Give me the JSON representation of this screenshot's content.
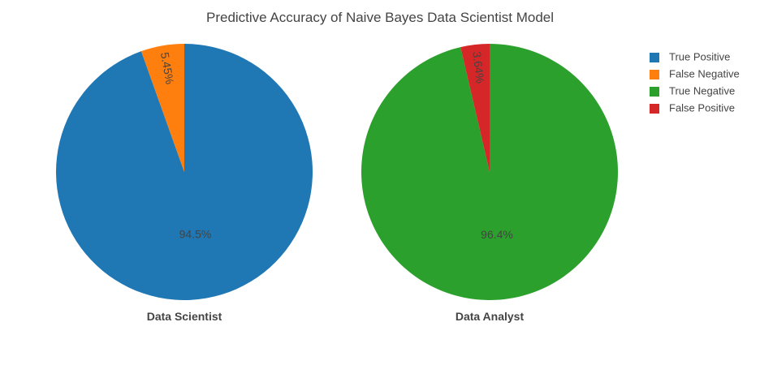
{
  "chart_data": {
    "type": "pie",
    "title": "Predictive Accuracy of Naive Bayes Data Scientist Model",
    "legend": {
      "placement": "top-right",
      "items": [
        {
          "label": "True Positive",
          "color": "#1f77b4"
        },
        {
          "label": "False Negative",
          "color": "#ff7f0e"
        },
        {
          "label": "True Negative",
          "color": "#2ca02c"
        },
        {
          "label": "False Positive",
          "color": "#d62728"
        }
      ]
    },
    "pies": [
      {
        "name": "Data Scientist",
        "slices": [
          {
            "label": "True Positive",
            "value": 94.5,
            "text": "94.5%",
            "color": "#1f77b4"
          },
          {
            "label": "False Negative",
            "value": 5.45,
            "text": "5.45%",
            "color": "#ff7f0e"
          }
        ]
      },
      {
        "name": "Data Analyst",
        "slices": [
          {
            "label": "True Negative",
            "value": 96.4,
            "text": "96.4%",
            "color": "#2ca02c"
          },
          {
            "label": "False Positive",
            "value": 3.64,
            "text": "3.64%",
            "color": "#d62728"
          }
        ]
      }
    ]
  }
}
